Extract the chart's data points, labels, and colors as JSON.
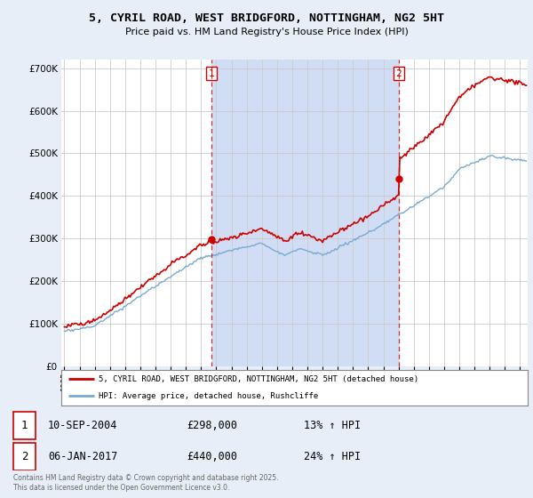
{
  "title": "5, CYRIL ROAD, WEST BRIDGFORD, NOTTINGHAM, NG2 5HT",
  "subtitle": "Price paid vs. HM Land Registry's House Price Index (HPI)",
  "bg_color": "#e8eef8",
  "plot_bg_color": "#ffffff",
  "highlight_color": "#d0ddf5",
  "legend_line1": "5, CYRIL ROAD, WEST BRIDGFORD, NOTTINGHAM, NG2 5HT (detached house)",
  "legend_line2": "HPI: Average price, detached house, Rushcliffe",
  "annotation1_date": "10-SEP-2004",
  "annotation1_price": "£298,000",
  "annotation1_hpi": "13% ↑ HPI",
  "annotation2_date": "06-JAN-2017",
  "annotation2_price": "£440,000",
  "annotation2_hpi": "24% ↑ HPI",
  "sale1_x": 2004.7,
  "sale1_y": 298000,
  "sale2_x": 2017.02,
  "sale2_y": 440000,
  "red_color": "#cc0000",
  "blue_color": "#7aaad0",
  "footnote": "Contains HM Land Registry data © Crown copyright and database right 2025.\nThis data is licensed under the Open Government Licence v3.0.",
  "ylim": [
    0,
    720000
  ],
  "xlim_start": 1994.8,
  "xlim_end": 2025.5
}
